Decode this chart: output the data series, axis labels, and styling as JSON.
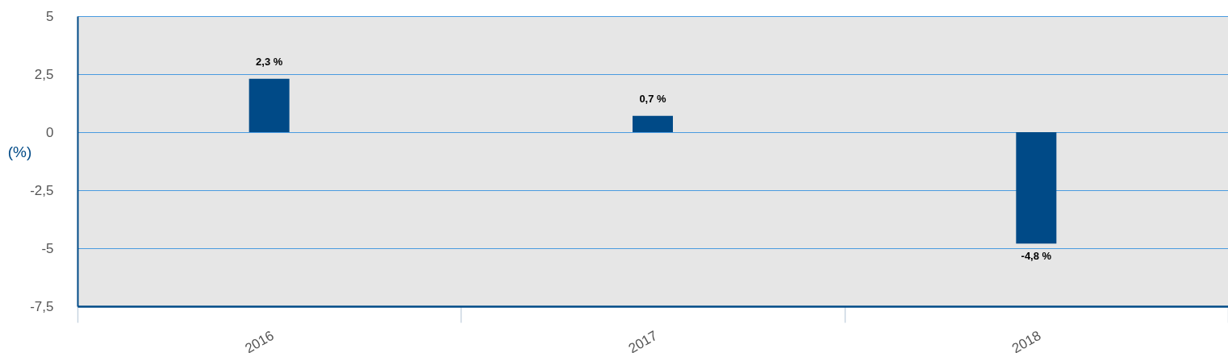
{
  "chart_data": {
    "type": "bar",
    "ylabel": "(%)",
    "categories": [
      "2016",
      "2017",
      "2018"
    ],
    "values": [
      2.3,
      0.7,
      -4.8
    ],
    "value_labels": [
      "2,3 %",
      "0,7 %",
      "-4,8 %"
    ],
    "color": "#004a87",
    "ylim": [
      -7.5,
      5
    ],
    "yticks": [
      {
        "value": -7.5,
        "label": "-7,5"
      },
      -5,
      {
        "value": -2.5,
        "label": "-2,5"
      },
      0,
      {
        "value": 2.5,
        "label": "2,5"
      },
      5
    ],
    "grid": "y"
  }
}
